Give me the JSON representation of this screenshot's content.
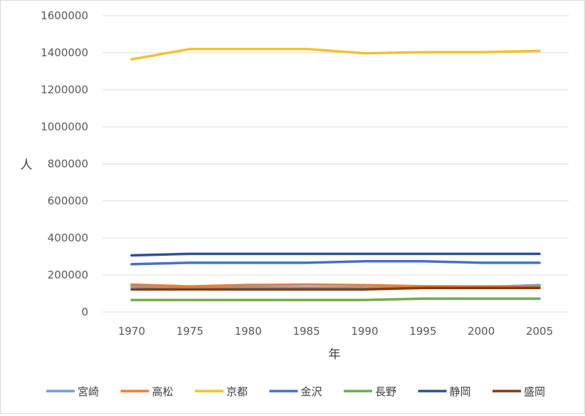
{
  "chart_data": {
    "type": "line",
    "xlabel": "年",
    "ylabel": "人",
    "x": [
      "1970",
      "1975",
      "1980",
      "1985",
      "1990",
      "1995",
      "2000",
      "2005"
    ],
    "ylim": [
      0,
      1600000
    ],
    "yticks": [
      "0",
      "200000",
      "400000",
      "600000",
      "800000",
      "1000000",
      "1200000",
      "1400000",
      "1600000"
    ],
    "grid": true,
    "legend_position": "bottom",
    "series": [
      {
        "name": "宮崎",
        "color": "#6fa0d8",
        "values": [
          136000,
          134000,
          133000,
          132000,
          131000,
          132000,
          134000,
          145000
        ]
      },
      {
        "name": "高松",
        "color": "#ed7d31",
        "values": [
          148000,
          138000,
          146000,
          148000,
          145000,
          139000,
          138000,
          140000
        ]
      },
      {
        "name": "京都",
        "color": "#f2c12e",
        "values": [
          1364000,
          1420000,
          1420000,
          1420000,
          1397000,
          1403000,
          1403000,
          1410000
        ]
      },
      {
        "name": "金沢",
        "color": "#4472c4",
        "values": [
          258000,
          266000,
          266000,
          266000,
          274000,
          274000,
          266000,
          266000
        ]
      },
      {
        "name": "長野",
        "color": "#70ad47",
        "values": [
          65000,
          65000,
          65000,
          65000,
          65000,
          72000,
          72000,
          72000
        ]
      },
      {
        "name": "静岡",
        "color": "#2f528f",
        "values": [
          306000,
          314000,
          314000,
          314000,
          314000,
          314000,
          314000,
          314000
        ]
      },
      {
        "name": "盛岡",
        "color": "#843c0c",
        "values": [
          122000,
          122000,
          122000,
          122000,
          122000,
          130000,
          130000,
          130000
        ]
      }
    ]
  }
}
